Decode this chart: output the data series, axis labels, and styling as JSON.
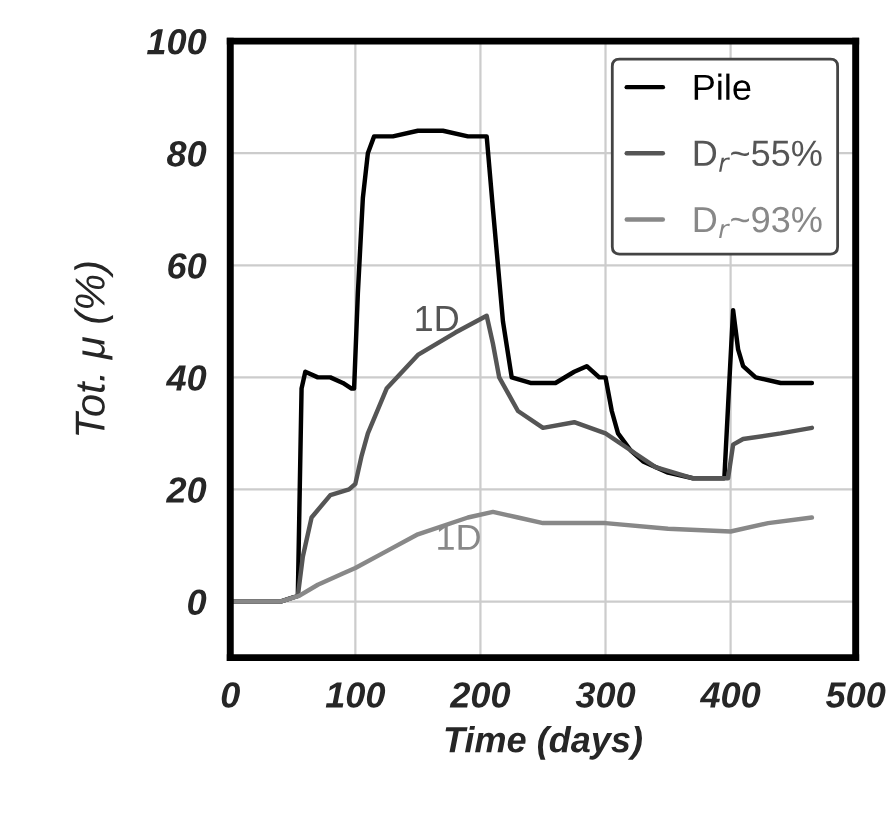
{
  "chart_data": {
    "type": "line",
    "xlabel": "Time (days)",
    "ylabel": "Tot. μ (%)",
    "xlim": [
      0,
      500
    ],
    "ylim": [
      -10,
      100
    ],
    "xticks": [
      0,
      100,
      200,
      300,
      400,
      500
    ],
    "yticks": [
      0,
      20,
      40,
      60,
      80,
      100
    ],
    "grid": true,
    "legend": "top right",
    "line_style": "solid",
    "marker": "none",
    "annotations": [
      "1D",
      "1D"
    ],
    "series": [
      {
        "name": "Pile",
        "color": "#000000",
        "x": [
          0,
          40,
          54,
          57,
          60,
          70,
          80,
          90,
          97,
          99,
          102,
          106,
          110,
          115,
          130,
          150,
          170,
          190,
          205,
          210,
          218,
          225,
          240,
          260,
          275,
          285,
          295,
          300,
          305,
          310,
          320,
          330,
          350,
          370,
          395,
          398,
          402,
          406,
          410,
          420,
          440,
          465
        ],
        "values": [
          0,
          0,
          1,
          38,
          41,
          40,
          40,
          39,
          38,
          38,
          55,
          72,
          80,
          83,
          83,
          84,
          84,
          83,
          83,
          70,
          50,
          40,
          39,
          39,
          41,
          42,
          40,
          40,
          34,
          30,
          27,
          25,
          23,
          22,
          22,
          35,
          52,
          45,
          42,
          40,
          39,
          39
        ]
      },
      {
        "name": "D$_{r}$~55%",
        "color": "#555555",
        "x": [
          0,
          40,
          54,
          58,
          65,
          80,
          95,
          100,
          105,
          110,
          125,
          150,
          180,
          205,
          210,
          215,
          230,
          250,
          275,
          300,
          320,
          340,
          370,
          395,
          398,
          402,
          410,
          440,
          465
        ],
        "values": [
          0,
          0,
          1,
          8,
          15,
          19,
          20,
          21,
          26,
          30,
          38,
          44,
          48,
          51,
          46,
          40,
          34,
          31,
          32,
          30,
          27,
          24,
          22,
          22,
          22,
          28,
          29,
          30,
          31
        ]
      },
      {
        "name": "D$_{r}$~93%",
        "color": "#888888",
        "x": [
          0,
          40,
          55,
          70,
          90,
          100,
          125,
          150,
          190,
          210,
          230,
          250,
          300,
          350,
          400,
          430,
          465
        ],
        "values": [
          0,
          0,
          1,
          3,
          5,
          6,
          9,
          12,
          15,
          16,
          15,
          14,
          14,
          13,
          12.5,
          14,
          15
        ]
      }
    ]
  }
}
